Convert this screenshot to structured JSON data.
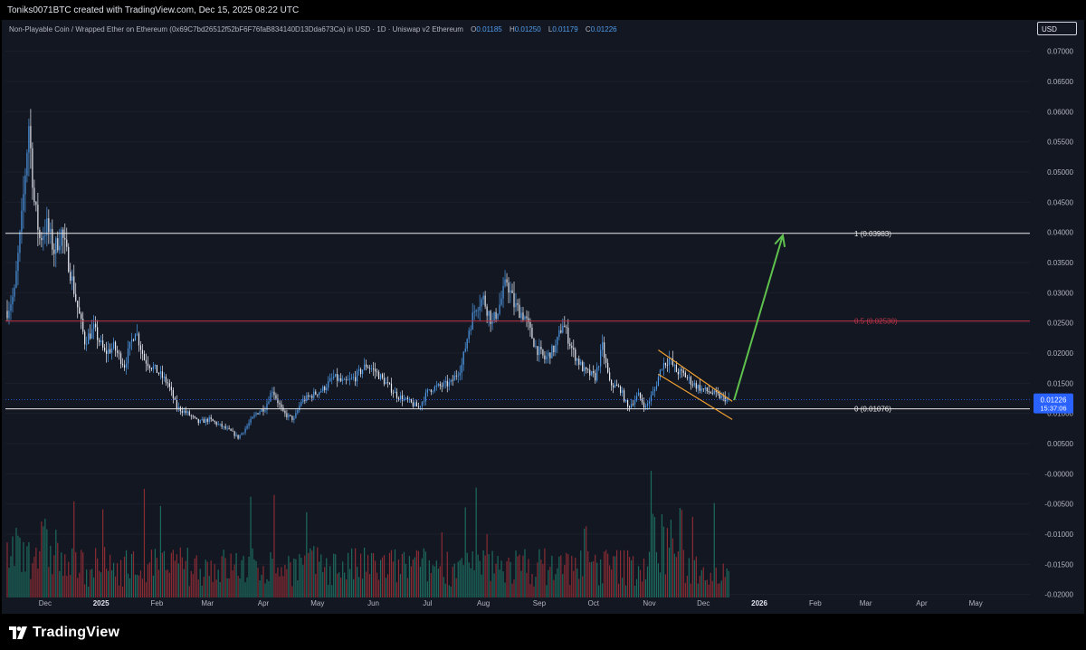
{
  "header": {
    "caption": "Toniks0071BTC created with TradingView.com, Dec 15, 2025 08:22 UTC"
  },
  "legend": {
    "symbol": "Non-Playable Coin / Wrapped Ether on Ethereum (0x69C7bd26512f52bF6F76faB834140D13Dda673Ca) in USD · 1D · Uniswap v2 Ethereum",
    "o_label": "O",
    "o_value": "0.01185",
    "h_label": "H",
    "h_value": "0.01250",
    "l_label": "L",
    "l_value": "0.01179",
    "c_label": "C",
    "c_value": "0.01226"
  },
  "currency_button": "USD",
  "price_tag": {
    "price": "0.01226",
    "countdown": "15:37:06",
    "color": "#2962ff"
  },
  "footer": {
    "brand": "TradingView"
  },
  "colors": {
    "background": "#131722",
    "up": "#4f9be9",
    "down": "#e8ebf2",
    "fib_1": "#e8e8e8",
    "fib_05": "#c2344a",
    "fib_0": "#e8e8e8",
    "wedge": "#f0a030",
    "arrow": "#5fc24d",
    "volume_up": "#1d6b5e",
    "volume_down": "#8a2c34"
  },
  "chart_data": {
    "type": "candlestick",
    "title": "",
    "xlabel": "",
    "ylabel": "",
    "ylim": [
      -0.0205,
      0.0725
    ],
    "y_ticks": [
      "0.07000",
      "0.06500",
      "0.06000",
      "0.05500",
      "0.05000",
      "0.04500",
      "0.04000",
      "0.03500",
      "0.03000",
      "0.02500",
      "0.02000",
      "0.01500",
      "0.01000",
      "0.00500",
      "-0.00000",
      "-0.00500",
      "-0.01000",
      "-0.01500",
      "-0.02000"
    ],
    "x_ticks": [
      "Dec",
      "2025",
      "Feb",
      "Mar",
      "Apr",
      "May",
      "Jun",
      "Jul",
      "Aug",
      "Sep",
      "Oct",
      "Nov",
      "Dec",
      "2026",
      "Feb",
      "Mar",
      "Apr",
      "May"
    ],
    "x_range": [
      "2024-11-09",
      "2026-05-31"
    ],
    "price_path": [
      [
        "2024-11-10",
        0.027
      ],
      [
        "2024-11-14",
        0.03
      ],
      [
        "2024-11-18",
        0.042
      ],
      [
        "2024-11-22",
        0.058
      ],
      [
        "2024-11-25",
        0.045
      ],
      [
        "2024-11-28",
        0.039
      ],
      [
        "2024-12-02",
        0.041
      ],
      [
        "2024-12-06",
        0.037
      ],
      [
        "2024-12-10",
        0.04
      ],
      [
        "2024-12-14",
        0.035
      ],
      [
        "2024-12-18",
        0.029
      ],
      [
        "2024-12-23",
        0.022
      ],
      [
        "2024-12-28",
        0.024
      ],
      [
        "2025-01-03",
        0.02
      ],
      [
        "2025-01-08",
        0.021
      ],
      [
        "2025-01-14",
        0.018
      ],
      [
        "2025-01-20",
        0.024
      ],
      [
        "2025-01-25",
        0.019
      ],
      [
        "2025-02-01",
        0.017
      ],
      [
        "2025-02-07",
        0.015
      ],
      [
        "2025-02-12",
        0.011
      ],
      [
        "2025-02-18",
        0.01
      ],
      [
        "2025-02-24",
        0.0085
      ],
      [
        "2025-03-02",
        0.009
      ],
      [
        "2025-03-08",
        0.008
      ],
      [
        "2025-03-14",
        0.007
      ],
      [
        "2025-03-18",
        0.006
      ],
      [
        "2025-03-22",
        0.0075
      ],
      [
        "2025-03-28",
        0.01
      ],
      [
        "2025-04-02",
        0.011
      ],
      [
        "2025-04-06",
        0.014
      ],
      [
        "2025-04-12",
        0.01
      ],
      [
        "2025-04-18",
        0.009
      ],
      [
        "2025-04-22",
        0.012
      ],
      [
        "2025-04-28",
        0.013
      ],
      [
        "2025-05-04",
        0.014
      ],
      [
        "2025-05-10",
        0.016
      ],
      [
        "2025-05-16",
        0.015
      ],
      [
        "2025-05-22",
        0.016
      ],
      [
        "2025-05-28",
        0.018
      ],
      [
        "2025-06-02",
        0.017
      ],
      [
        "2025-06-08",
        0.015
      ],
      [
        "2025-06-14",
        0.013
      ],
      [
        "2025-06-20",
        0.012
      ],
      [
        "2025-06-26",
        0.011
      ],
      [
        "2025-07-02",
        0.014
      ],
      [
        "2025-07-08",
        0.0145
      ],
      [
        "2025-07-14",
        0.015
      ],
      [
        "2025-07-20",
        0.018
      ],
      [
        "2025-07-24",
        0.024
      ],
      [
        "2025-07-28",
        0.028
      ],
      [
        "2025-08-01",
        0.029
      ],
      [
        "2025-08-06",
        0.025
      ],
      [
        "2025-08-10",
        0.028
      ],
      [
        "2025-08-14",
        0.032
      ],
      [
        "2025-08-18",
        0.028
      ],
      [
        "2025-08-24",
        0.026
      ],
      [
        "2025-08-30",
        0.021
      ],
      [
        "2025-09-04",
        0.019
      ],
      [
        "2025-09-10",
        0.021
      ],
      [
        "2025-09-14",
        0.025
      ],
      [
        "2025-09-20",
        0.02
      ],
      [
        "2025-09-26",
        0.017
      ],
      [
        "2025-10-02",
        0.016
      ],
      [
        "2025-10-06",
        0.021
      ],
      [
        "2025-10-10",
        0.015
      ],
      [
        "2025-10-16",
        0.014
      ],
      [
        "2025-10-20",
        0.011
      ],
      [
        "2025-10-26",
        0.013
      ],
      [
        "2025-10-30",
        0.011
      ],
      [
        "2025-11-04",
        0.014
      ],
      [
        "2025-11-08",
        0.018
      ],
      [
        "2025-11-12",
        0.019
      ],
      [
        "2025-11-16",
        0.017
      ],
      [
        "2025-11-20",
        0.0165
      ],
      [
        "2025-11-25",
        0.015
      ],
      [
        "2025-11-30",
        0.014
      ],
      [
        "2025-12-05",
        0.0135
      ],
      [
        "2025-12-10",
        0.0128
      ],
      [
        "2025-12-15",
        0.01226
      ]
    ],
    "volume_ylim": [
      0,
      1
    ],
    "horizontal_levels": [
      {
        "label": "1 (0.03983)",
        "value": 0.03983,
        "color": "#e8e8e8"
      },
      {
        "label": "0.5 (0.02530)",
        "value": 0.0253,
        "color": "#c2344a"
      },
      {
        "label": "0 (0.01076)",
        "value": 0.01076,
        "color": "#e8e8e8"
      }
    ],
    "last_price": 0.01226,
    "wedge": {
      "upper": [
        [
          "2025-11-06",
          0.0205
        ],
        [
          "2025-12-17",
          0.012
        ]
      ],
      "lower": [
        [
          "2025-11-06",
          0.0165
        ],
        [
          "2025-12-17",
          0.009
        ]
      ]
    },
    "projection_arrow": {
      "from": [
        "2025-12-18",
        0.0122
      ],
      "to": [
        "2026-01-14",
        0.0395
      ]
    },
    "grid": true
  }
}
